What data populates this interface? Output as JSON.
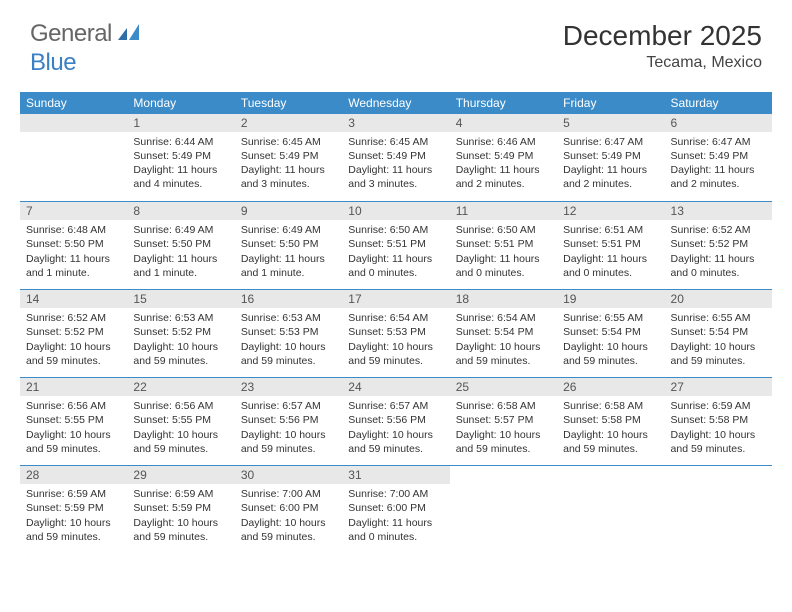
{
  "brand": {
    "part1": "General",
    "part2": "Blue"
  },
  "title": "December 2025",
  "location": "Tecama, Mexico",
  "colors": {
    "header_bg": "#3b8bc9",
    "header_text": "#ffffff",
    "daynum_bg": "#e8e8e8",
    "border": "#3b8bc9",
    "body_text": "#333333",
    "logo_blue": "#3b7fc4"
  },
  "daysOfWeek": [
    "Sunday",
    "Monday",
    "Tuesday",
    "Wednesday",
    "Thursday",
    "Friday",
    "Saturday"
  ],
  "weeks": [
    [
      null,
      {
        "n": "1",
        "sr": "6:44 AM",
        "ss": "5:49 PM",
        "dl": "11 hours and 4 minutes."
      },
      {
        "n": "2",
        "sr": "6:45 AM",
        "ss": "5:49 PM",
        "dl": "11 hours and 3 minutes."
      },
      {
        "n": "3",
        "sr": "6:45 AM",
        "ss": "5:49 PM",
        "dl": "11 hours and 3 minutes."
      },
      {
        "n": "4",
        "sr": "6:46 AM",
        "ss": "5:49 PM",
        "dl": "11 hours and 2 minutes."
      },
      {
        "n": "5",
        "sr": "6:47 AM",
        "ss": "5:49 PM",
        "dl": "11 hours and 2 minutes."
      },
      {
        "n": "6",
        "sr": "6:47 AM",
        "ss": "5:49 PM",
        "dl": "11 hours and 2 minutes."
      }
    ],
    [
      {
        "n": "7",
        "sr": "6:48 AM",
        "ss": "5:50 PM",
        "dl": "11 hours and 1 minute."
      },
      {
        "n": "8",
        "sr": "6:49 AM",
        "ss": "5:50 PM",
        "dl": "11 hours and 1 minute."
      },
      {
        "n": "9",
        "sr": "6:49 AM",
        "ss": "5:50 PM",
        "dl": "11 hours and 1 minute."
      },
      {
        "n": "10",
        "sr": "6:50 AM",
        "ss": "5:51 PM",
        "dl": "11 hours and 0 minutes."
      },
      {
        "n": "11",
        "sr": "6:50 AM",
        "ss": "5:51 PM",
        "dl": "11 hours and 0 minutes."
      },
      {
        "n": "12",
        "sr": "6:51 AM",
        "ss": "5:51 PM",
        "dl": "11 hours and 0 minutes."
      },
      {
        "n": "13",
        "sr": "6:52 AM",
        "ss": "5:52 PM",
        "dl": "11 hours and 0 minutes."
      }
    ],
    [
      {
        "n": "14",
        "sr": "6:52 AM",
        "ss": "5:52 PM",
        "dl": "10 hours and 59 minutes."
      },
      {
        "n": "15",
        "sr": "6:53 AM",
        "ss": "5:52 PM",
        "dl": "10 hours and 59 minutes."
      },
      {
        "n": "16",
        "sr": "6:53 AM",
        "ss": "5:53 PM",
        "dl": "10 hours and 59 minutes."
      },
      {
        "n": "17",
        "sr": "6:54 AM",
        "ss": "5:53 PM",
        "dl": "10 hours and 59 minutes."
      },
      {
        "n": "18",
        "sr": "6:54 AM",
        "ss": "5:54 PM",
        "dl": "10 hours and 59 minutes."
      },
      {
        "n": "19",
        "sr": "6:55 AM",
        "ss": "5:54 PM",
        "dl": "10 hours and 59 minutes."
      },
      {
        "n": "20",
        "sr": "6:55 AM",
        "ss": "5:54 PM",
        "dl": "10 hours and 59 minutes."
      }
    ],
    [
      {
        "n": "21",
        "sr": "6:56 AM",
        "ss": "5:55 PM",
        "dl": "10 hours and 59 minutes."
      },
      {
        "n": "22",
        "sr": "6:56 AM",
        "ss": "5:55 PM",
        "dl": "10 hours and 59 minutes."
      },
      {
        "n": "23",
        "sr": "6:57 AM",
        "ss": "5:56 PM",
        "dl": "10 hours and 59 minutes."
      },
      {
        "n": "24",
        "sr": "6:57 AM",
        "ss": "5:56 PM",
        "dl": "10 hours and 59 minutes."
      },
      {
        "n": "25",
        "sr": "6:58 AM",
        "ss": "5:57 PM",
        "dl": "10 hours and 59 minutes."
      },
      {
        "n": "26",
        "sr": "6:58 AM",
        "ss": "5:58 PM",
        "dl": "10 hours and 59 minutes."
      },
      {
        "n": "27",
        "sr": "6:59 AM",
        "ss": "5:58 PM",
        "dl": "10 hours and 59 minutes."
      }
    ],
    [
      {
        "n": "28",
        "sr": "6:59 AM",
        "ss": "5:59 PM",
        "dl": "10 hours and 59 minutes."
      },
      {
        "n": "29",
        "sr": "6:59 AM",
        "ss": "5:59 PM",
        "dl": "10 hours and 59 minutes."
      },
      {
        "n": "30",
        "sr": "7:00 AM",
        "ss": "6:00 PM",
        "dl": "10 hours and 59 minutes."
      },
      {
        "n": "31",
        "sr": "7:00 AM",
        "ss": "6:00 PM",
        "dl": "11 hours and 0 minutes."
      },
      null,
      null,
      null
    ]
  ],
  "labels": {
    "sunrise": "Sunrise:",
    "sunset": "Sunset:",
    "daylight": "Daylight:"
  }
}
